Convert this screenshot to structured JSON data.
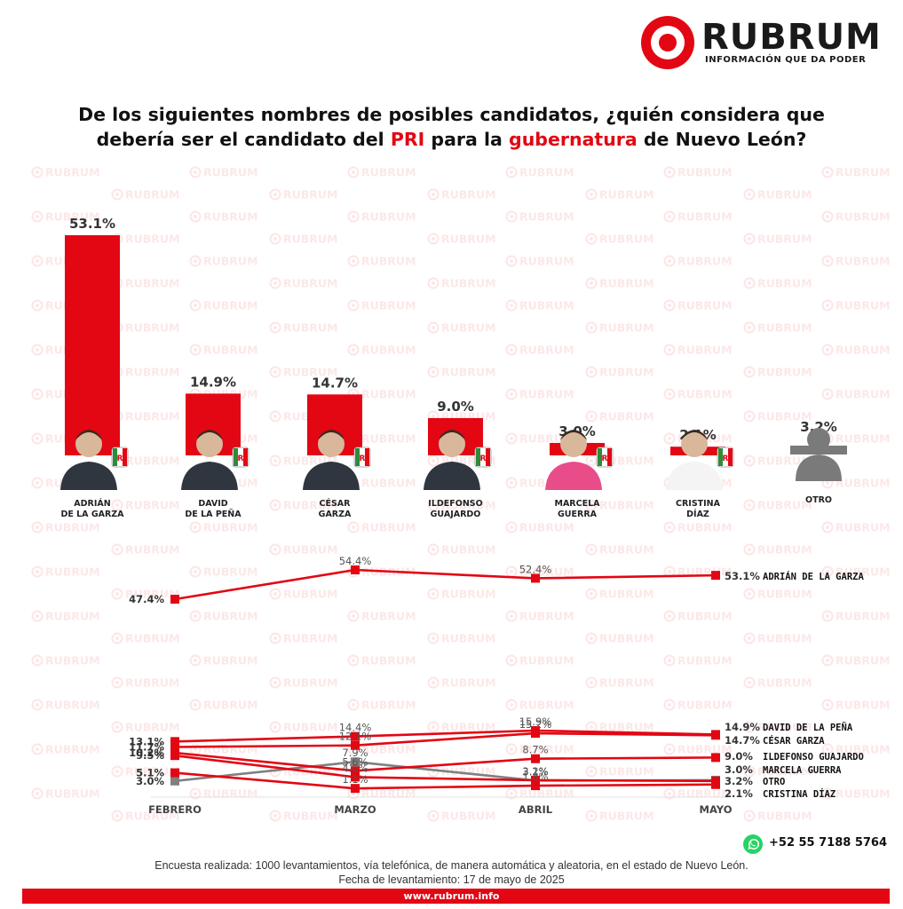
{
  "brand": {
    "name": "RUBRUM",
    "tagline": "INFORMACIÓN QUE DA PODER",
    "accent": "#e30613",
    "watermark_text": "RUBRUM",
    "phone": "+52 55 7188 5764",
    "url": "www.rubrum.info"
  },
  "question": {
    "part1": "De los siguientes nombres de posibles candidatos, ¿quién considera que",
    "part2": "debería ser el candidato del ",
    "hl1": "PRI",
    "part3": " para la ",
    "hl2": "gubernatura",
    "part4": " de Nuevo León?"
  },
  "footer": {
    "line1": "Encuesta realizada: 1000 levantamientos, vía telefónica, de manera automática y aleatoria, en el estado de Nuevo León.",
    "line2": "Fecha de levantamiento: 17 de mayo de 2025"
  },
  "chart_data": [
    {
      "type": "bar",
      "categories": [
        [
          "ADRIÁN",
          "DE LA GARZA"
        ],
        [
          "DAVID",
          "DE LA PEÑA"
        ],
        [
          "CÉSAR",
          "GARZA"
        ],
        [
          "ILDEFONSO",
          "GUAJARDO"
        ],
        [
          "MARCELA",
          "GUERRA"
        ],
        [
          "CRISTINA",
          "DÍAZ"
        ],
        [
          "OTRO"
        ]
      ],
      "values": [
        53.1,
        14.9,
        14.7,
        9.0,
        3.0,
        2.1,
        3.2
      ],
      "value_labels": [
        "53.1%",
        "14.9%",
        "14.7%",
        "9.0%",
        "3.0%",
        "2.1%",
        "3.2%"
      ],
      "colors": [
        "#e30613",
        "#e30613",
        "#e30613",
        "#e30613",
        "#e30613",
        "#e30613",
        "#808080"
      ],
      "ylim": [
        0,
        53.1
      ],
      "grid": false
    },
    {
      "type": "line",
      "x": [
        "FEBRERO",
        "MARZO",
        "ABRIL",
        "MAYO"
      ],
      "series": [
        {
          "name": "ADRIÁN DE LA GARZA",
          "values": [
            47.4,
            54.4,
            52.4,
            53.1
          ],
          "labels": [
            "47.4%",
            "54.4%",
            "52.4%",
            "53.1%"
          ],
          "color": "#e30613"
        },
        {
          "name": "DAVID DE LA PEÑA",
          "values": [
            13.1,
            14.4,
            15.9,
            14.9
          ],
          "labels": [
            "13.1%",
            "14.4%",
            "15.9%",
            "14.9%"
          ],
          "color": "#e30613"
        },
        {
          "name": "CÉSAR GARZA",
          "values": [
            11.7,
            12.1,
            15.2,
            14.7
          ],
          "labels": [
            "11.7%",
            "12.1%",
            "15.2%",
            "14.7%"
          ],
          "color": "#e30613"
        },
        {
          "name": "ILDEFONSO GUAJARDO",
          "values": [
            10.2,
            5.6,
            8.7,
            9.0
          ],
          "labels": [
            "10.2%",
            "5.6%",
            "8.7%",
            "9.0%"
          ],
          "color": "#e30613"
        },
        {
          "name": "MARCELA GUERRA",
          "values": [
            9.5,
            4.0,
            3.2,
            3.0
          ],
          "labels": [
            "9.5%",
            "4.0%",
            "3.2%",
            "3.0%"
          ],
          "color": "#e30613"
        },
        {
          "name": "OTRO",
          "values": [
            3.0,
            7.9,
            3.1,
            3.2
          ],
          "labels": [
            "3.0%",
            "7.9%",
            "3.1%",
            "3.2%"
          ],
          "color": "#808080"
        },
        {
          "name": "CRISTINA DÍAZ",
          "values": [
            5.1,
            1.1,
            1.8,
            2.1
          ],
          "labels": [
            "5.1%",
            "1.1%",
            "1.8%",
            "2.1%"
          ],
          "color": "#e30613"
        }
      ],
      "grid": false,
      "legend": "right"
    }
  ]
}
